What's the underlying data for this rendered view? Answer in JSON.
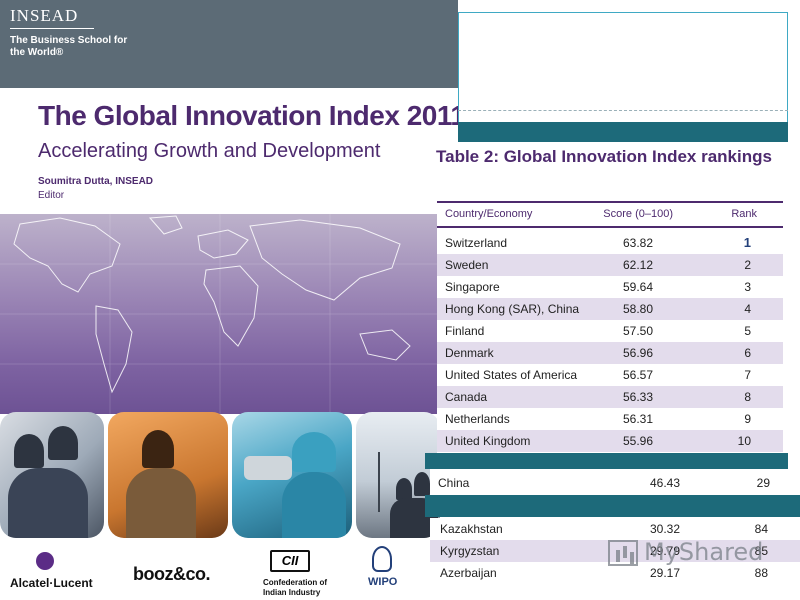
{
  "cover": {
    "brand": "INSEAD",
    "tagline": "The Business School for the World®",
    "title": "The Global Innovation Index 2011",
    "subtitle": "Accelerating Growth and Development",
    "author": "Soumitra Dutta, INSEAD",
    "role": "Editor",
    "sponsors": {
      "alcatel": "Alcatel·Lucent",
      "booz": "booz&co.",
      "cii_logo": "CII",
      "cii": "Confederation of Indian Industry",
      "wipo": "WIPO"
    }
  },
  "table": {
    "title": "Table 2: Global Innovation Index rankings",
    "headers": {
      "country": "Country/Economy",
      "score": "Score (0–100)",
      "rank": "Rank"
    },
    "rows": [
      {
        "country": "Switzerland",
        "score": "63.82",
        "rank": "1"
      },
      {
        "country": "Sweden",
        "score": "62.12",
        "rank": "2"
      },
      {
        "country": "Singapore",
        "score": "59.64",
        "rank": "3"
      },
      {
        "country": "Hong Kong (SAR), China",
        "score": "58.80",
        "rank": "4"
      },
      {
        "country": "Finland",
        "score": "57.50",
        "rank": "5"
      },
      {
        "country": "Denmark",
        "score": "56.96",
        "rank": "6"
      },
      {
        "country": "United States of America",
        "score": "56.57",
        "rank": "7"
      },
      {
        "country": "Canada",
        "score": "56.33",
        "rank": "8"
      },
      {
        "country": "Netherlands",
        "score": "56.31",
        "rank": "9"
      },
      {
        "country": "United Kingdom",
        "score": "55.96",
        "rank": "10"
      }
    ],
    "china": {
      "country": "China",
      "score": "46.43",
      "rank": "29"
    },
    "lower_rows": [
      {
        "country": "Kazakhstan",
        "score": "30.32",
        "rank": "84"
      },
      {
        "country": "Kyrgyzstan",
        "score": "29.79",
        "rank": "85"
      },
      {
        "country": "Azerbaijan",
        "score": "29.17",
        "rank": "88"
      }
    ]
  },
  "watermark": "MyShared"
}
